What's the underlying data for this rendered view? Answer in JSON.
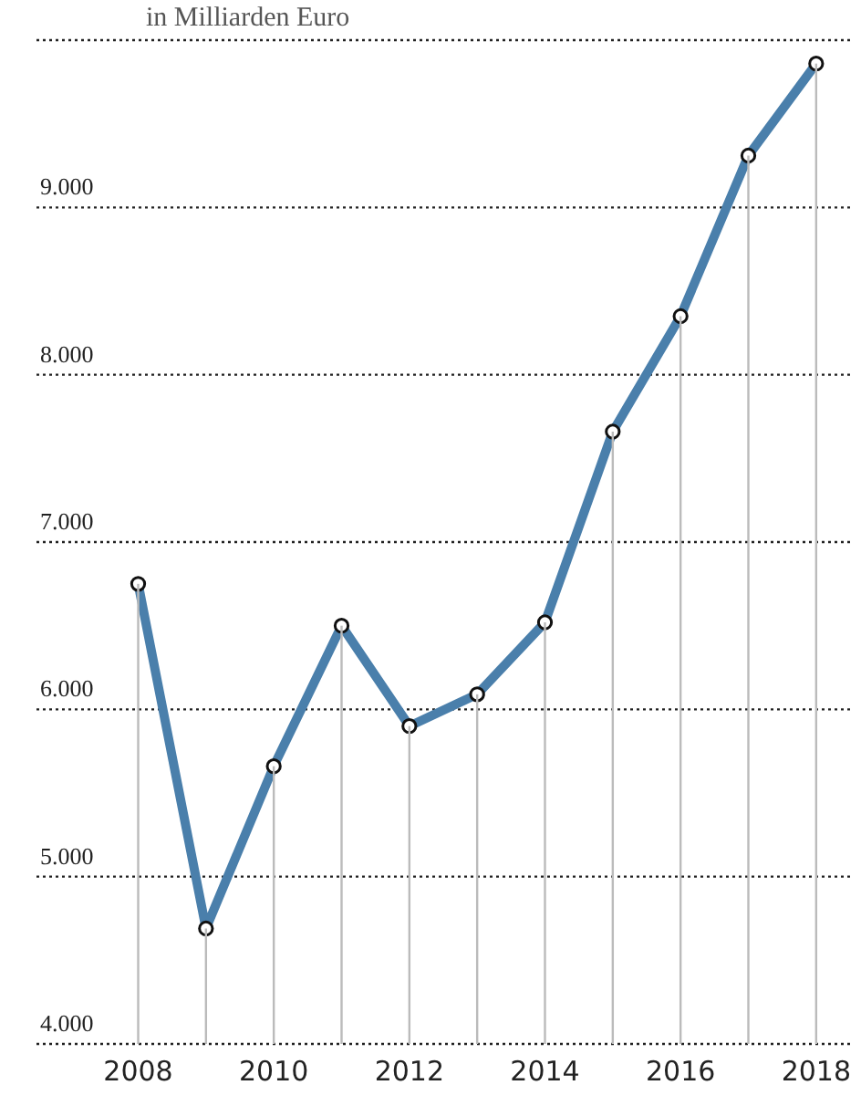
{
  "chart_data": {
    "type": "line",
    "subtitle": "in Milliarden Euro",
    "x": [
      2008,
      2009,
      2010,
      2011,
      2012,
      2013,
      2014,
      2015,
      2016,
      2017,
      2018
    ],
    "series": [
      {
        "color": "#4a7fab",
        "values": [
          6750,
          4690,
          5660,
          6500,
          5900,
          6090,
          6520,
          7660,
          8350,
          9310,
          9860
        ]
      },
      {
        "type": "bar",
        "color": "#bbbbbb",
        "values": [
          6750,
          4690,
          5660,
          6500,
          5900,
          6090,
          6520,
          7660,
          8350,
          9310,
          9860
        ]
      }
    ],
    "xlim": [
      2006.5,
      2018.5
    ],
    "xticks": [
      2008,
      2010,
      2012,
      2014,
      2016,
      2018
    ],
    "ylim": [
      4000,
      10000
    ],
    "yticks": [
      {
        "value": 4000,
        "label": "4.000"
      },
      {
        "value": 5000,
        "label": "5.000"
      },
      {
        "value": 6000,
        "label": "6.000"
      },
      {
        "value": 7000,
        "label": "7.000"
      },
      {
        "value": 8000,
        "label": "8.000"
      },
      {
        "value": 9000,
        "label": "9.000"
      },
      {
        "value": 10000,
        "label": null
      }
    ],
    "grid": "y",
    "marker": "circle",
    "line_style": "solid"
  }
}
